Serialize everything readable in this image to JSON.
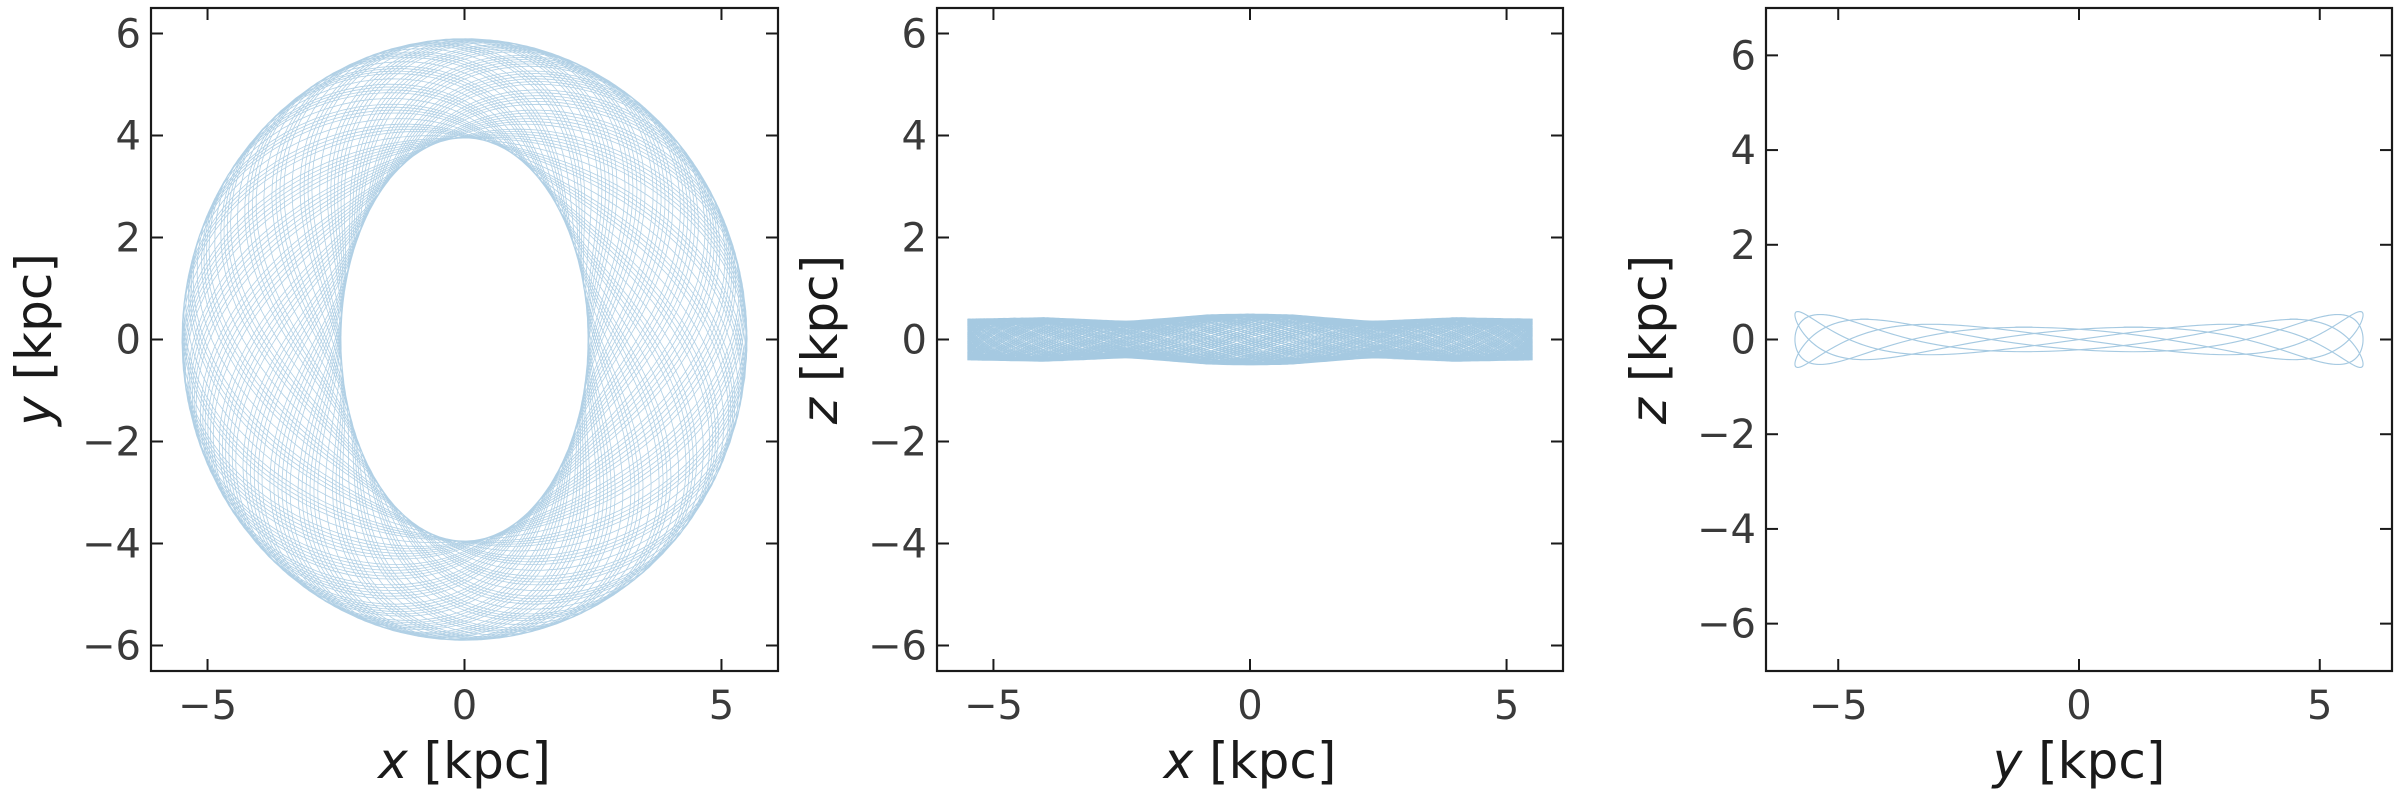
{
  "chart_data": [
    {
      "type": "line",
      "title": "",
      "xlabel": {
        "variable": "x",
        "unit": "[kpc]"
      },
      "ylabel": {
        "variable": "y",
        "unit": "[kpc]"
      },
      "xlim": [
        -6.1,
        6.1
      ],
      "ylim": [
        -6.5,
        6.5
      ],
      "xticks": [
        -5,
        0,
        5
      ],
      "yticks": [
        -6,
        -4,
        -2,
        0,
        2,
        4,
        6
      ],
      "grid": false,
      "legend": "none",
      "series": [
        {
          "color": "#1f77b4",
          "orbit_envelope": {
            "outer_semi_axes": [
              5.5,
              5.9
            ],
            "inner_semi_axes": [
              2.4,
              3.95
            ],
            "inner_tip_y": 3.95
          }
        }
      ]
    },
    {
      "type": "line",
      "title": "",
      "xlabel": {
        "variable": "x",
        "unit": "[kpc]"
      },
      "ylabel": {
        "variable": "z",
        "unit": "[kpc]"
      },
      "xlim": [
        -6.1,
        6.1
      ],
      "ylim": [
        -6.5,
        6.5
      ],
      "xticks": [
        -5,
        0,
        5
      ],
      "yticks": [
        -6,
        -4,
        -2,
        0,
        2,
        4,
        6
      ],
      "grid": false,
      "legend": "none",
      "series": [
        {
          "color": "#1f77b4",
          "orbit_envelope": {
            "x_range": [
              -5.5,
              5.5
            ],
            "z_half_thickness_center": 0.5,
            "z_half_thickness_edge": 0.4,
            "pinch_x": [
              -2.4,
              2.4
            ]
          }
        }
      ]
    },
    {
      "type": "line",
      "title": "",
      "xlabel": {
        "variable": "y",
        "unit": "[kpc]"
      },
      "ylabel": {
        "variable": "z",
        "unit": "[kpc]"
      },
      "xlim": [
        -6.5,
        6.5
      ],
      "ylim": [
        -7,
        7
      ],
      "xticks": [
        -5,
        0,
        5
      ],
      "yticks": [
        -6,
        -4,
        -2,
        0,
        2,
        4,
        6
      ],
      "grid": false,
      "legend": "none",
      "series": [
        {
          "color": "#1f77b4",
          "orbit_envelope": {
            "y_range": [
              -5.9,
              5.9
            ],
            "z_half_thickness_center": 0.25,
            "z_half_thickness_edge": 0.6,
            "caustic_y": [
              -3.95,
              3.95
            ]
          }
        }
      ]
    }
  ]
}
